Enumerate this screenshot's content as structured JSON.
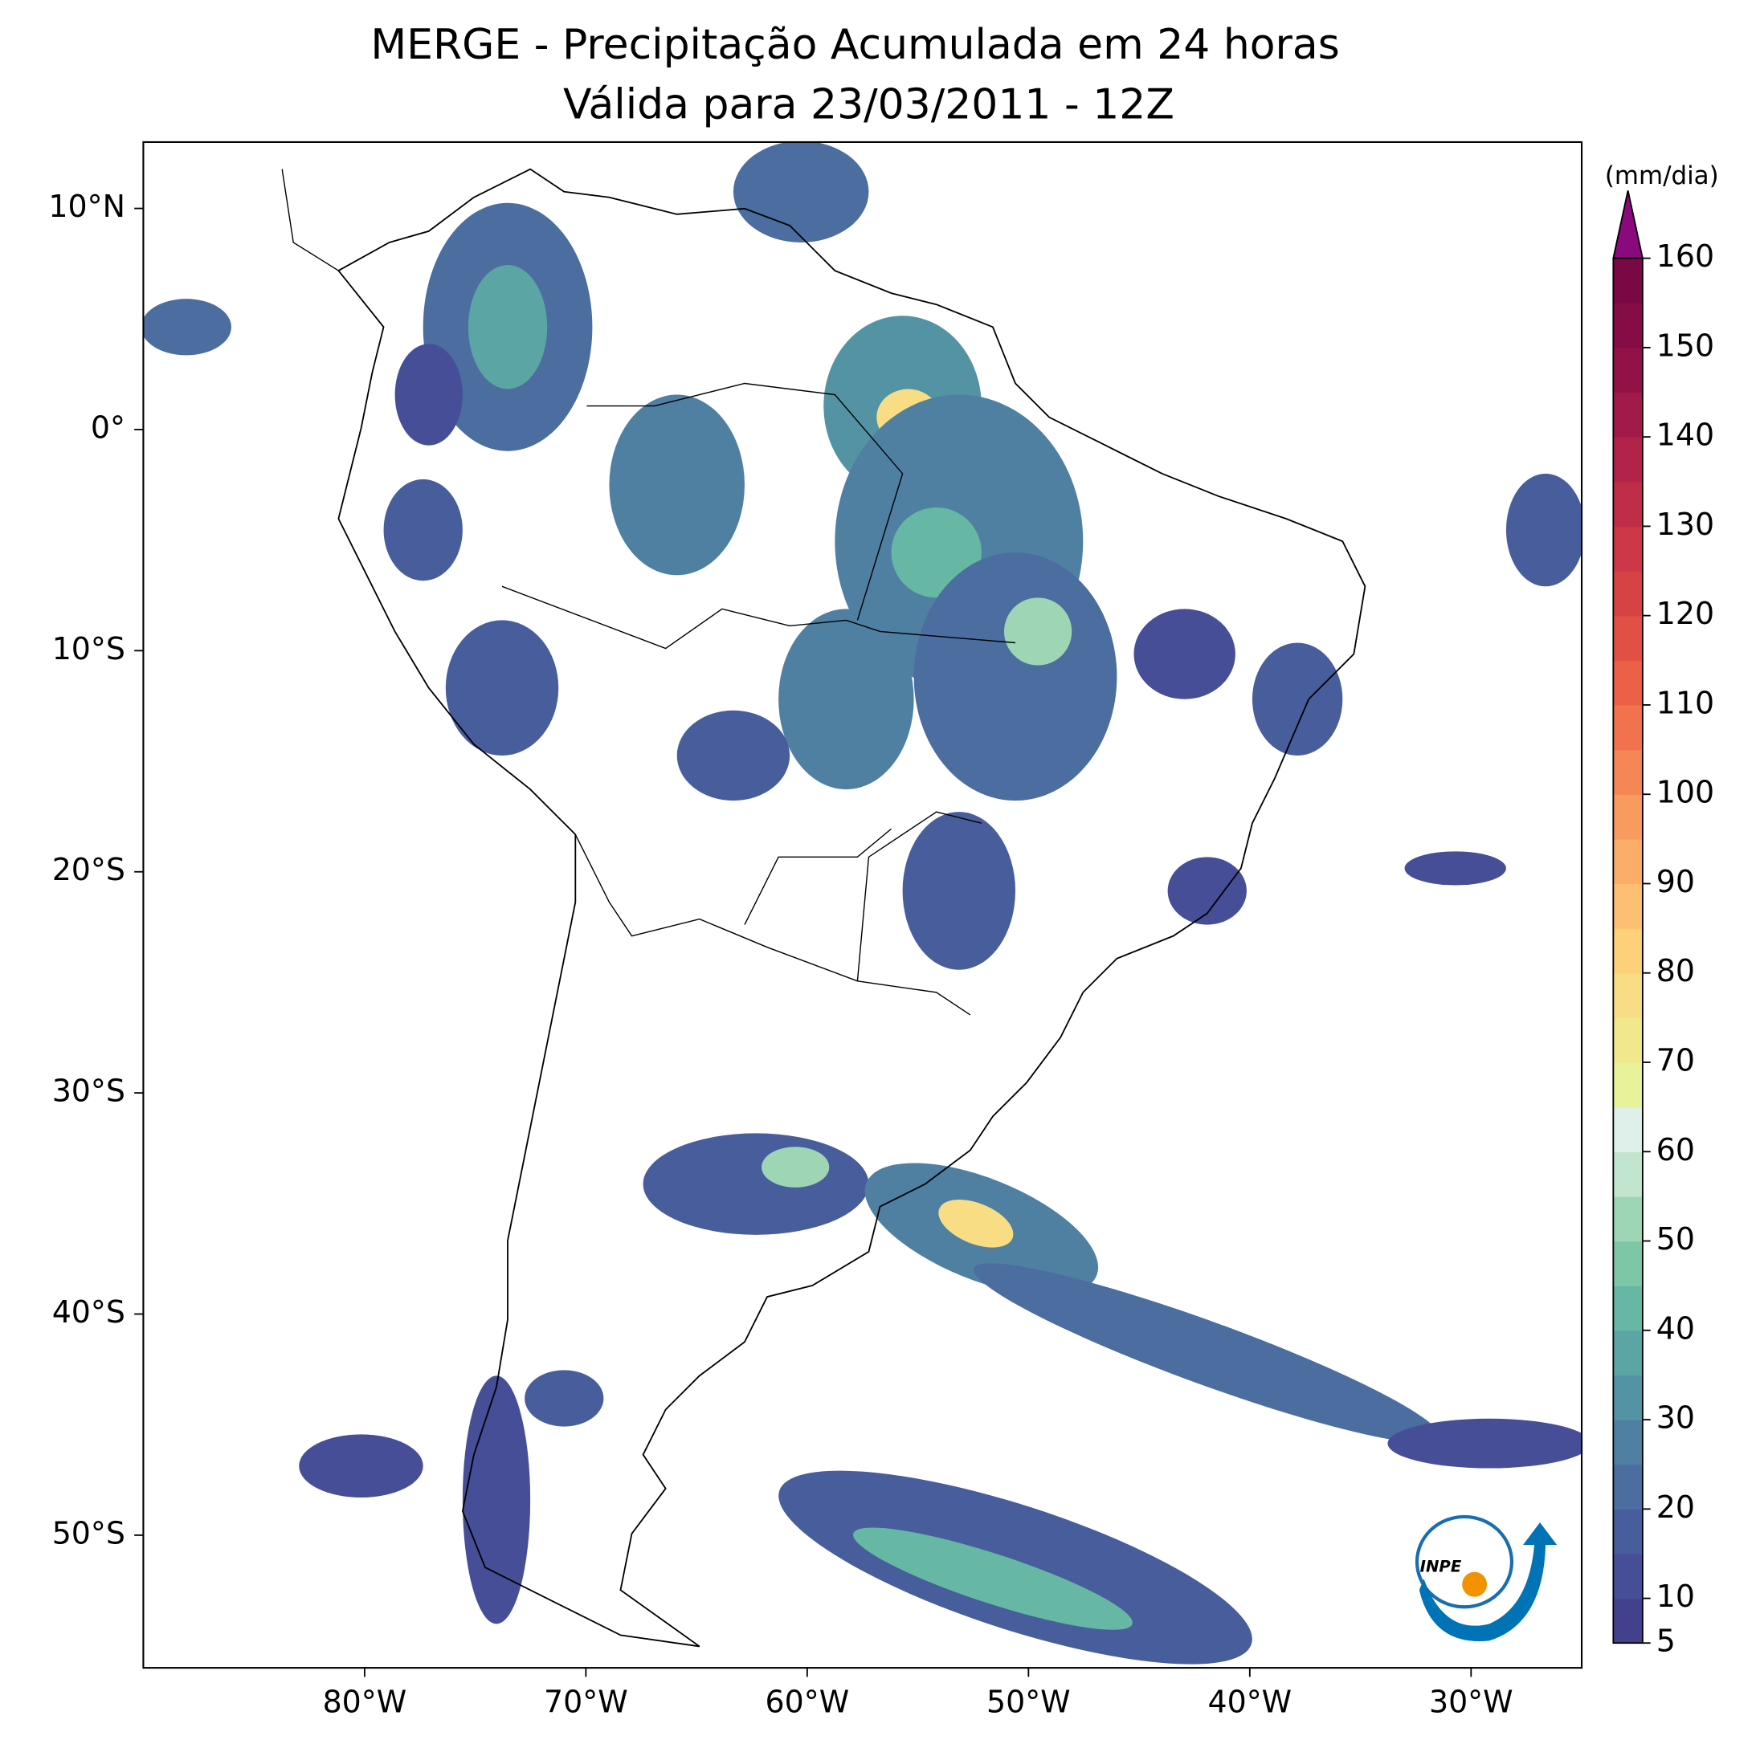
{
  "title": "MERGE - Precipitação Acumulada em 24 horas",
  "subtitle": "Válida para 23/03/2011 - 12Z",
  "map": {
    "lonlim": [
      -90,
      -25
    ],
    "latlim": [
      -56,
      13
    ],
    "lon_ticks": [
      {
        "value": -80,
        "label": "80°W"
      },
      {
        "value": -70,
        "label": "70°W"
      },
      {
        "value": -60,
        "label": "60°W"
      },
      {
        "value": -50,
        "label": "50°W"
      },
      {
        "value": -40,
        "label": "40°W"
      },
      {
        "value": -30,
        "label": "30°W"
      }
    ],
    "lat_ticks": [
      {
        "value": 10,
        "label": "10°N"
      },
      {
        "value": 0,
        "label": "0°"
      },
      {
        "value": -10,
        "label": "10°S"
      },
      {
        "value": -20,
        "label": "20°S"
      },
      {
        "value": -30,
        "label": "30°S"
      },
      {
        "value": -40,
        "label": "40°S"
      },
      {
        "value": -50,
        "label": "50°S"
      }
    ]
  },
  "colorbar": {
    "label": "(mm/dia)",
    "lim": [
      5,
      160
    ],
    "ticks": [
      5,
      10,
      20,
      30,
      40,
      50,
      60,
      70,
      80,
      90,
      100,
      110,
      120,
      130,
      140,
      150,
      160
    ],
    "colors": [
      "#43418d",
      "#454e96",
      "#485d9c",
      "#4b6da0",
      "#4f80a2",
      "#5493a3",
      "#5ba5a4",
      "#66b8a4",
      "#7dc7a7",
      "#9ed6b5",
      "#c2e5d0",
      "#dff0ea",
      "#e8f29b",
      "#f1e88c",
      "#f8dd84",
      "#fdd07a",
      "#fdc072",
      "#fbae67",
      "#f89b5e",
      "#f58655",
      "#f1724c",
      "#eb6046",
      "#e25045",
      "#d74345",
      "#cc3847",
      "#c02d49",
      "#b2234a",
      "#a21a4a",
      "#921248",
      "#860c46",
      "#7a0844"
    ],
    "extend_color": "#8a0a7e"
  },
  "logo": "INPE"
}
